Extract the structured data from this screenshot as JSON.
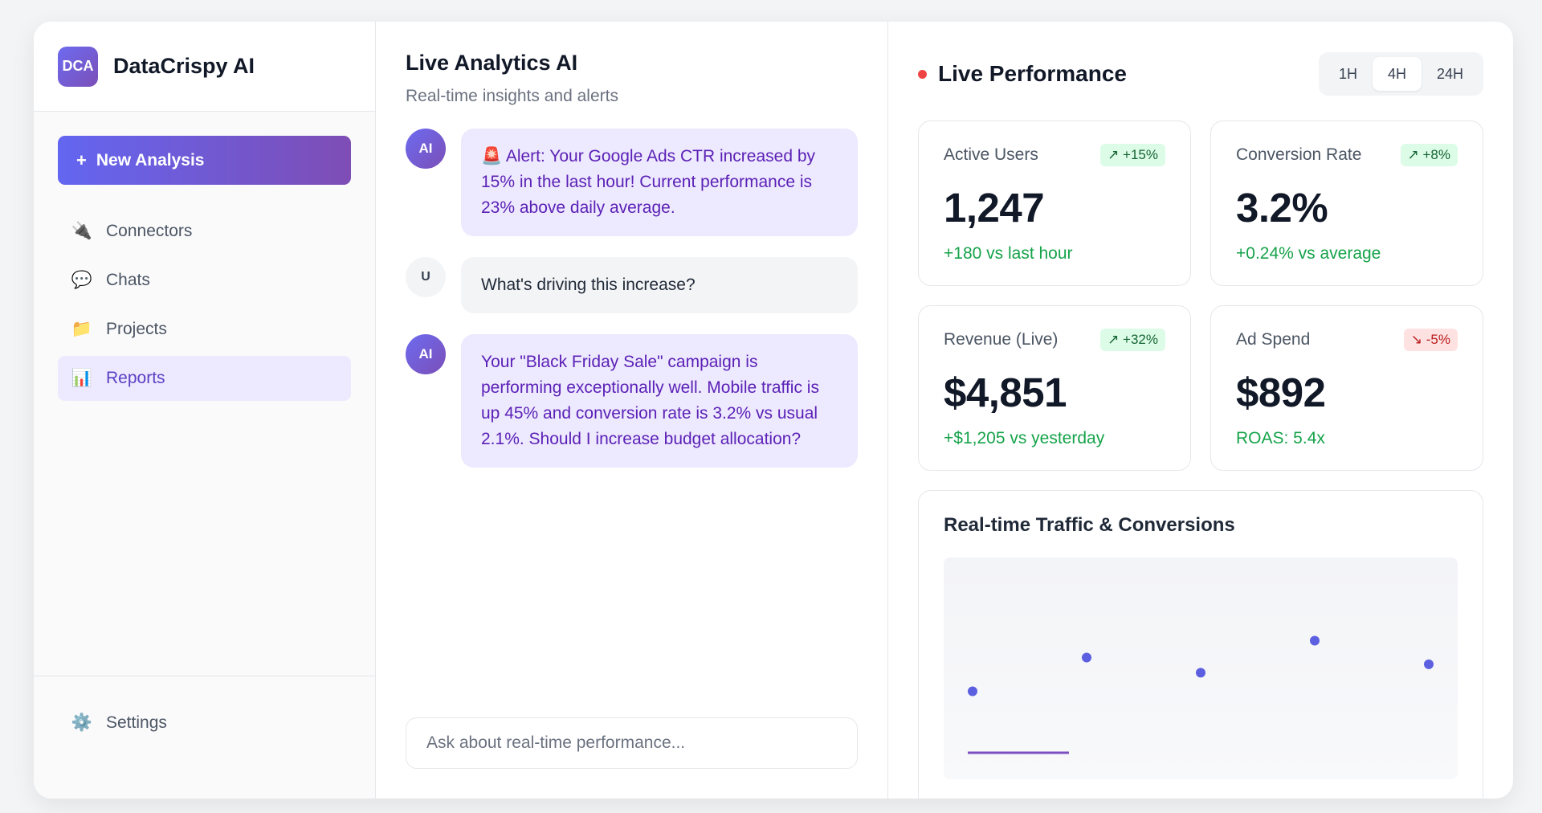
{
  "brand": {
    "logo_text": "DCA",
    "name": "DataCrispy AI"
  },
  "sidebar": {
    "new_button": {
      "icon": "+",
      "label": "New Analysis"
    },
    "items": [
      {
        "label": "Connectors",
        "icon": "plug-icon",
        "glyph": "🔌",
        "active": false
      },
      {
        "label": "Chats",
        "icon": "speech-bubble-icon",
        "glyph": "💬",
        "active": false
      },
      {
        "label": "Projects",
        "icon": "folder-icon",
        "glyph": "📁",
        "active": false
      },
      {
        "label": "Reports",
        "icon": "bar-chart-icon",
        "glyph": "📊",
        "active": true
      }
    ],
    "settings": {
      "label": "Settings",
      "icon": "gear-icon",
      "glyph": "⚙️"
    }
  },
  "chat": {
    "title": "Live Analytics AI",
    "subtitle": "Real-time insights and alerts",
    "messages": [
      {
        "role": "ai",
        "avatar": "AI",
        "text": "🚨 Alert: Your Google Ads CTR increased by 15% in the last hour! Current performance is 23% above daily average."
      },
      {
        "role": "user",
        "avatar": "U",
        "text": "What's driving this increase?"
      },
      {
        "role": "ai",
        "avatar": "AI",
        "text": "Your \"Black Friday Sale\" campaign is performing exceptionally well. Mobile traffic is up 45% and conversion rate is 3.2% vs usual 2.1%. Should I increase budget allocation?"
      }
    ],
    "input_placeholder": "Ask about real-time performance..."
  },
  "performance": {
    "title": "Live Performance",
    "live_color": "#ef4444",
    "ranges": [
      {
        "label": "1H",
        "active": false
      },
      {
        "label": "4H",
        "active": true
      },
      {
        "label": "24H",
        "active": false
      }
    ],
    "cards": [
      {
        "label": "Active Users",
        "badge": "↗ +15%",
        "trend": "up",
        "value": "1,247",
        "delta": "+180 vs last hour"
      },
      {
        "label": "Conversion Rate",
        "badge": "↗ +8%",
        "trend": "up",
        "value": "3.2%",
        "delta": "+0.24% vs average"
      },
      {
        "label": "Revenue (Live)",
        "badge": "↗ +32%",
        "trend": "up",
        "value": "$4,851",
        "delta": "+$1,205 vs yesterday"
      },
      {
        "label": "Ad Spend",
        "badge": "↘ -5%",
        "trend": "down",
        "value": "$892",
        "delta": "ROAS: 5.4x"
      }
    ],
    "traffic": {
      "title": "Real-time Traffic & Conversions",
      "accent": "#6366f1"
    }
  },
  "chart_data": {
    "type": "scatter",
    "title": "Real-time Traffic & Conversions",
    "x": [
      1,
      2,
      3,
      4,
      5
    ],
    "values": [
      0.35,
      0.55,
      0.46,
      0.65,
      0.51
    ],
    "ylim": [
      0,
      1
    ],
    "grid": false,
    "point_color": "#5b5fe0",
    "line_color": "#7c4fc0"
  }
}
